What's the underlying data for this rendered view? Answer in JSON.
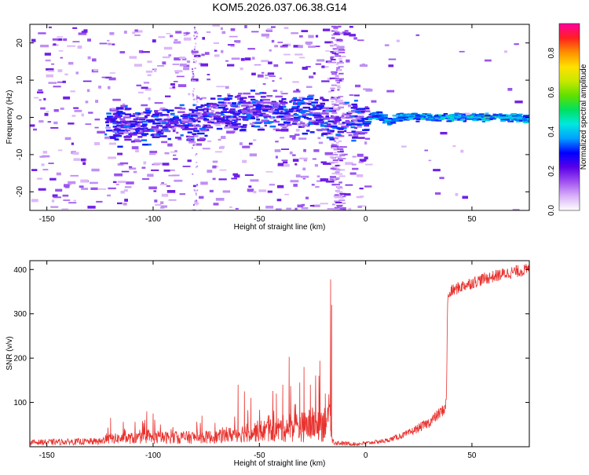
{
  "page_title": "KOM5.2026.037.06.38.G14",
  "chart_data": [
    {
      "type": "heatmap",
      "title": "KOM5.2026.037.06.38.G14",
      "xlabel": "Height of straight line (km)",
      "ylabel": "Frequency (Hz)",
      "xlim": [
        -158,
        77
      ],
      "ylim": [
        -25,
        25
      ],
      "xticks": [
        -150,
        -100,
        -50,
        0,
        50
      ],
      "yticks": [
        -20,
        -10,
        0,
        10,
        20
      ],
      "colorbar": {
        "label": "Normalized spectral amplitude",
        "range": [
          0,
          0.95
        ],
        "ticks": [
          0.0,
          0.2,
          0.4,
          0.6,
          0.8
        ],
        "colors": [
          "#ffffff",
          "#d8b0f8",
          "#a050f0",
          "#5a00e8",
          "#0000ff",
          "#00a0ff",
          "#00e8e0",
          "#00e060",
          "#60e000",
          "#c8e800",
          "#ffe000",
          "#ff9000",
          "#ff2020",
          "#ff00a0"
        ]
      },
      "ridge": {
        "description_points_x": [
          -123,
          -110,
          -95,
          -80,
          -65,
          -55,
          -45,
          -35,
          -25,
          -19,
          -15,
          -10,
          -5,
          0,
          5,
          10,
          15,
          20,
          30,
          40,
          50,
          60,
          70,
          77
        ],
        "center_frequency": [
          -2,
          -2,
          -1.5,
          -0.5,
          1,
          2,
          2,
          1.5,
          1,
          0.5,
          -2.5,
          -1.5,
          -0.5,
          0,
          0.5,
          -1,
          0,
          0,
          0,
          0,
          0,
          0,
          0,
          -0.5
        ],
        "amplitude": [
          0.3,
          0.3,
          0.3,
          0.32,
          0.35,
          0.38,
          0.35,
          0.35,
          0.33,
          0.35,
          0.3,
          0.25,
          0.25,
          0.3,
          0.35,
          0.55,
          0.5,
          0.5,
          0.55,
          0.6,
          0.65,
          0.62,
          0.6,
          0.55
        ]
      }
    },
    {
      "type": "line",
      "xlabel": "Height of straight line (km)",
      "ylabel": "SNR (v/v)",
      "xlim": [
        -158,
        77
      ],
      "ylim": [
        0,
        420
      ],
      "xticks": [
        -150,
        -100,
        -50,
        0,
        50
      ],
      "yticks": [
        100,
        200,
        300,
        400
      ],
      "color": "#e8322e",
      "envelope": {
        "x": [
          -158,
          -125,
          -120,
          -100,
          -70,
          -60,
          -50,
          -40,
          -35,
          -30,
          -25,
          -20,
          -18,
          -17,
          -16,
          -15,
          -12,
          -5,
          0,
          10,
          20,
          30,
          37,
          38,
          38.5,
          40,
          45,
          50,
          55,
          60,
          65,
          70,
          77
        ],
        "base": [
          10,
          12,
          18,
          20,
          22,
          30,
          35,
          40,
          45,
          45,
          50,
          55,
          60,
          60,
          20,
          10,
          8,
          6,
          8,
          14,
          30,
          55,
          85,
          100,
          330,
          350,
          362,
          370,
          378,
          384,
          390,
          395,
          400
        ],
        "noise": [
          6,
          8,
          12,
          14,
          15,
          20,
          25,
          30,
          35,
          35,
          40,
          45,
          30,
          30,
          10,
          6,
          5,
          4,
          4,
          5,
          8,
          12,
          14,
          14,
          12,
          14,
          14,
          14,
          14,
          14,
          14,
          14,
          14
        ]
      },
      "spikes": [
        {
          "x": -120,
          "y": 65
        },
        {
          "x": -103,
          "y": 80
        },
        {
          "x": -100,
          "y": 75
        },
        {
          "x": -77,
          "y": 70
        },
        {
          "x": -60,
          "y": 140
        },
        {
          "x": -57,
          "y": 125
        },
        {
          "x": -54,
          "y": 110
        },
        {
          "x": -42,
          "y": 120
        },
        {
          "x": -39,
          "y": 140
        },
        {
          "x": -36,
          "y": 203
        },
        {
          "x": -31,
          "y": 145
        },
        {
          "x": -29,
          "y": 180
        },
        {
          "x": -26,
          "y": 140
        },
        {
          "x": -22,
          "y": 160
        },
        {
          "x": -19,
          "y": 120
        },
        {
          "x": -16.5,
          "y": 378
        },
        {
          "x": -16,
          "y": 320
        }
      ]
    }
  ]
}
